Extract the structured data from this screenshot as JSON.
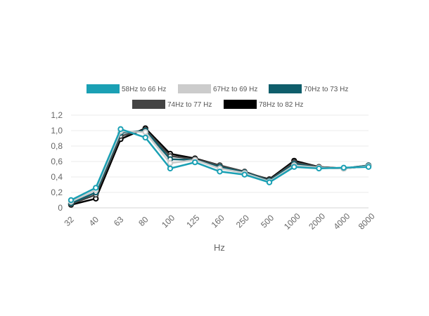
{
  "chart_data": {
    "type": "line",
    "categories": [
      "32",
      "40",
      "63",
      "80",
      "100",
      "125",
      "160",
      "250",
      "500",
      "1000",
      "2000",
      "4000",
      "8000"
    ],
    "xlabel": "Hz",
    "ylabel": "",
    "ylim": [
      0,
      1.2
    ],
    "yticks": [
      "0",
      "0,2",
      "0,4",
      "0,6",
      "0,8",
      "1,0",
      "1,2"
    ],
    "grid": true,
    "legend_position": "top",
    "series": [
      {
        "name": "58Hz to 66 Hz",
        "color": "#1aa0b4",
        "values": [
          0.1,
          0.26,
          1.02,
          0.91,
          0.51,
          0.59,
          0.47,
          0.43,
          0.33,
          0.53,
          0.51,
          0.52,
          0.53
        ]
      },
      {
        "name": "67Hz to 69 Hz",
        "color": "#cccccc",
        "values": [
          0.08,
          0.23,
          0.99,
          0.98,
          0.58,
          0.62,
          0.51,
          0.45,
          0.34,
          0.55,
          0.52,
          0.51,
          0.54
        ]
      },
      {
        "name": "70Hz to 73 Hz",
        "color": "#0f5e6b",
        "values": [
          0.06,
          0.2,
          0.97,
          1.0,
          0.63,
          0.62,
          0.53,
          0.46,
          0.35,
          0.57,
          0.52,
          0.51,
          0.55
        ]
      },
      {
        "name": "74Hz to 77 Hz",
        "color": "#444444",
        "values": [
          0.05,
          0.17,
          0.93,
          1.01,
          0.67,
          0.63,
          0.55,
          0.47,
          0.36,
          0.59,
          0.53,
          0.51,
          0.55
        ]
      },
      {
        "name": "78Hz to 82 Hz",
        "color": "#000000",
        "values": [
          0.04,
          0.12,
          0.89,
          1.03,
          0.7,
          0.64,
          0.55,
          0.46,
          0.37,
          0.61,
          0.53,
          0.51,
          0.54
        ]
      }
    ]
  }
}
